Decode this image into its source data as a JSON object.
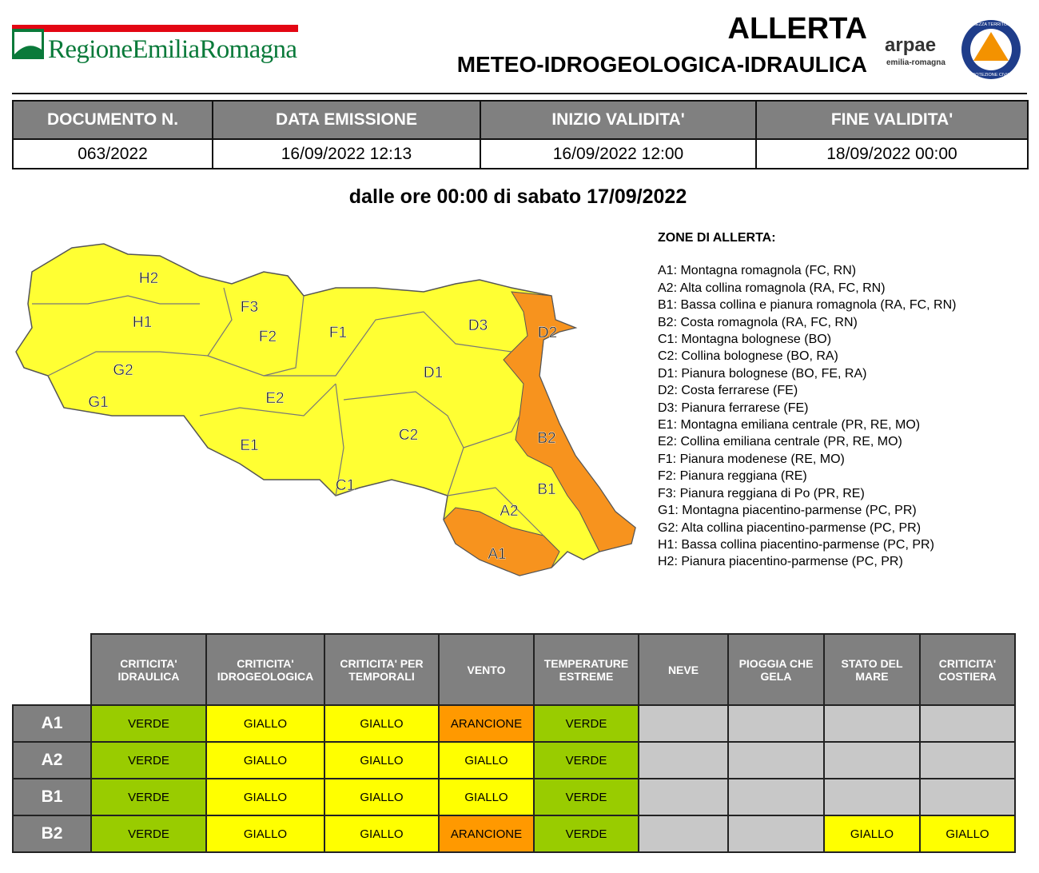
{
  "header": {
    "logo": "RegioneEmiliaRomagna",
    "title": "ALLERTA",
    "subtitle": "METEO-IDROGEOLOGICA-IDRAULICA",
    "arpae": "arpae",
    "arpae_sub": "emilia-romagna",
    "badge_top": "SICUREZZA TERRITORIALE",
    "badge_bottom": "PROTEZIONE CIVILE"
  },
  "document": {
    "columns": [
      "DOCUMENTO N.",
      "DATA EMISSIONE",
      "INIZIO VALIDITA'",
      "FINE VALIDITA'"
    ],
    "values": [
      "063/2022",
      "16/09/2022 12:13",
      "16/09/2022 12:00",
      "18/09/2022 00:00"
    ]
  },
  "period": "dalle ore 00:00 di sabato 17/09/2022",
  "map": {
    "zones": [
      "H2",
      "H1",
      "G2",
      "G1",
      "F3",
      "F2",
      "F1",
      "E2",
      "E1",
      "D3",
      "D2",
      "D1",
      "C2",
      "C1",
      "B2",
      "B1",
      "A2",
      "A1"
    ]
  },
  "legend": {
    "title": "ZONE DI ALLERTA:",
    "items": [
      "A1: Montagna romagnola (FC, RN)",
      "A2: Alta collina romagnola (RA, FC, RN)",
      "B1: Bassa collina e pianura romagnola (RA, FC, RN)",
      "B2: Costa romagnola (RA, FC, RN)",
      "C1: Montagna bolognese (BO)",
      "C2: Collina bolognese (BO, RA)",
      "D1: Pianura bolognese (BO, FE, RA)",
      "D2: Costa ferrarese (FE)",
      "D3: Pianura ferrarese (FE)",
      "E1: Montagna emiliana centrale (PR, RE, MO)",
      "E2: Collina emiliana centrale (PR, RE, MO)",
      "F1: Pianura modenese (RE, MO)",
      "F2: Pianura reggiana (RE)",
      "F3: Pianura reggiana di Po (PR, RE)",
      "G1: Montagna piacentino-parmense (PC, PR)",
      "G2: Alta collina piacentino-parmense (PC, PR)",
      "H1: Bassa collina piacentino-parmense (PC, PR)",
      "H2: Pianura piacentino-parmense (PC, PR)"
    ]
  },
  "risk_table": {
    "columns": [
      "CRITICITA' IDRAULICA",
      "CRITICITA' IDROGEOLOGICA",
      "CRITICITA' PER TEMPORALI",
      "VENTO",
      "TEMPERATURE ESTREME",
      "NEVE",
      "PIOGGIA CHE GELA",
      "STATO DEL MARE",
      "CRITICITA' COSTIERA"
    ],
    "rows": [
      {
        "zone": "A1",
        "cells": [
          {
            "text": "VERDE",
            "color": "#99cc00"
          },
          {
            "text": "GIALLO",
            "color": "#ffff00"
          },
          {
            "text": "GIALLO",
            "color": "#ffff00"
          },
          {
            "text": "ARANCIONE",
            "color": "#ff9900"
          },
          {
            "text": "VERDE",
            "color": "#99cc00"
          },
          null,
          null,
          null,
          null
        ]
      },
      {
        "zone": "A2",
        "cells": [
          {
            "text": "VERDE",
            "color": "#99cc00"
          },
          {
            "text": "GIALLO",
            "color": "#ffff00"
          },
          {
            "text": "GIALLO",
            "color": "#ffff00"
          },
          {
            "text": "GIALLO",
            "color": "#ffff00"
          },
          {
            "text": "VERDE",
            "color": "#99cc00"
          },
          null,
          null,
          null,
          null
        ]
      },
      {
        "zone": "B1",
        "cells": [
          {
            "text": "VERDE",
            "color": "#99cc00"
          },
          {
            "text": "GIALLO",
            "color": "#ffff00"
          },
          {
            "text": "GIALLO",
            "color": "#ffff00"
          },
          {
            "text": "GIALLO",
            "color": "#ffff00"
          },
          {
            "text": "VERDE",
            "color": "#99cc00"
          },
          null,
          null,
          null,
          null
        ]
      },
      {
        "zone": "B2",
        "cells": [
          {
            "text": "VERDE",
            "color": "#99cc00"
          },
          {
            "text": "GIALLO",
            "color": "#ffff00"
          },
          {
            "text": "GIALLO",
            "color": "#ffff00"
          },
          {
            "text": "ARANCIONE",
            "color": "#ff9900"
          },
          {
            "text": "VERDE",
            "color": "#99cc00"
          },
          null,
          null,
          {
            "text": "GIALLO",
            "color": "#ffff00"
          },
          {
            "text": "GIALLO",
            "color": "#ffff00"
          }
        ]
      }
    ]
  }
}
